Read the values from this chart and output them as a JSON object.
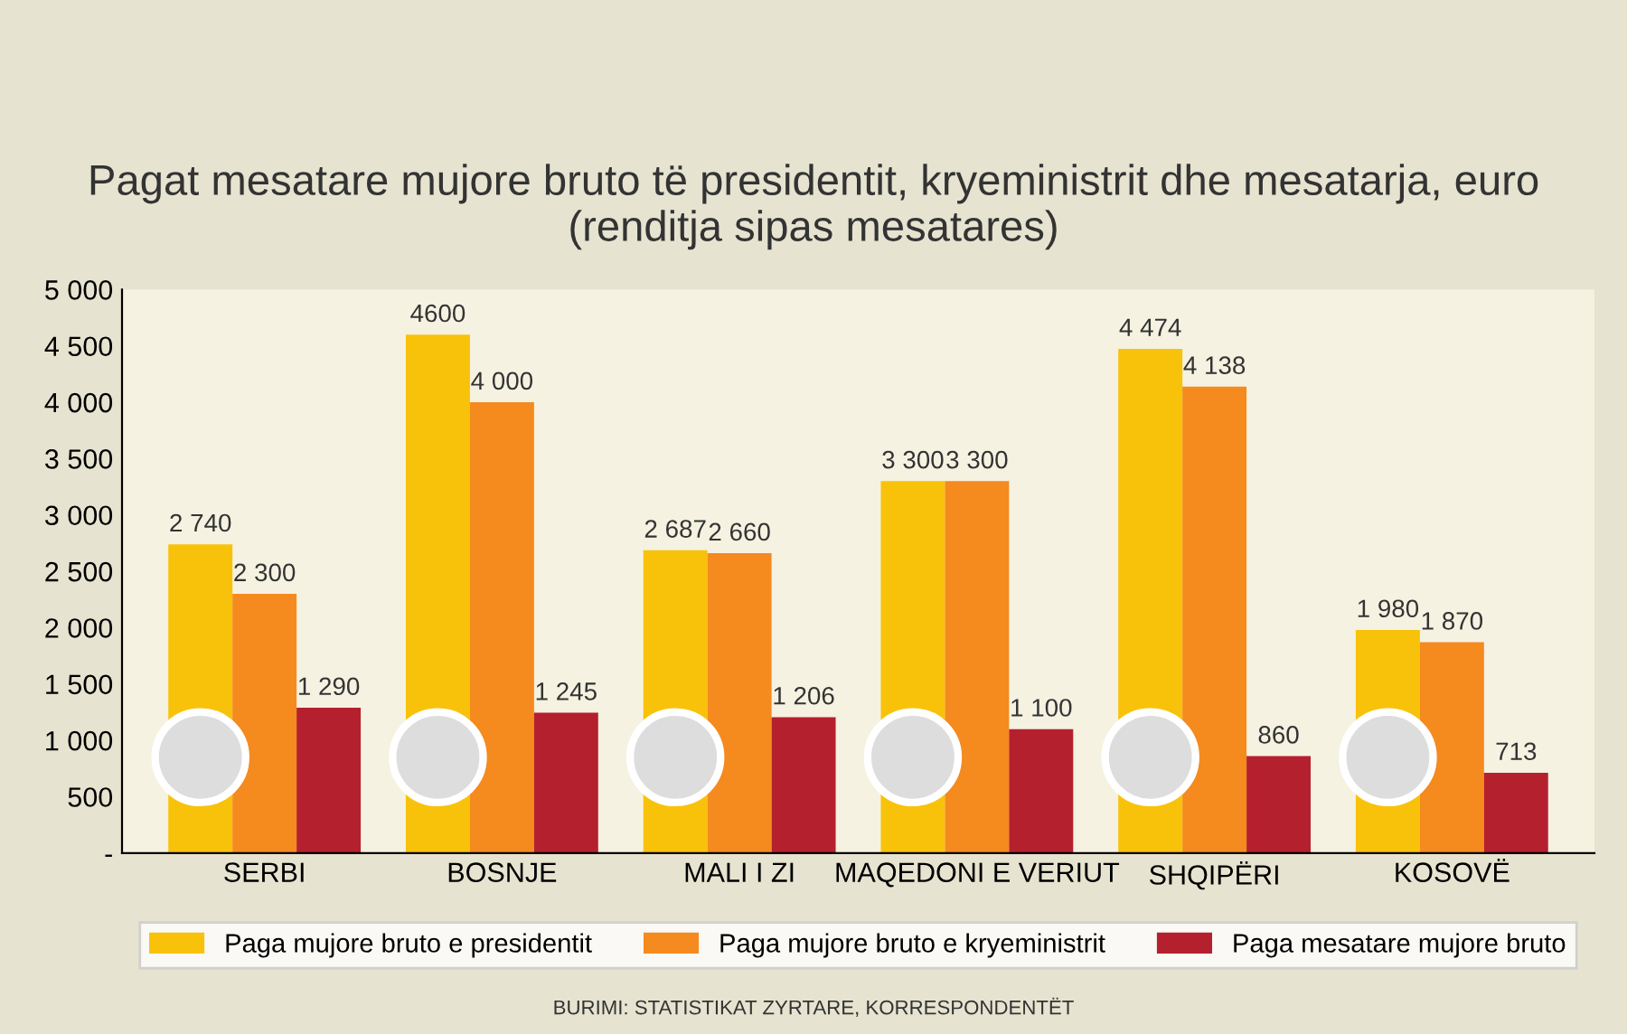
{
  "chart_data": {
    "type": "bar",
    "title": "Pagat mesatare mujore bruto të presidentit, kryeministrit dhe mesatarja, euro\n(renditja sipas mesatares)",
    "categories": [
      "SERBI",
      "BOSNJE",
      "MALI I ZI",
      "MAQEDONI E VERIUT",
      "SHQIPËRI",
      "KOSOVË"
    ],
    "series": [
      {
        "name": "Paga mujore bruto e presidentit",
        "color": "#f9c20a",
        "values": [
          2740,
          4600,
          2687,
          3300,
          4474,
          1980
        ],
        "value_labels": [
          "2 740",
          "4600",
          "2 687",
          "3 300",
          "4 474",
          "1 980"
        ]
      },
      {
        "name": "Paga mujore bruto e kryeministrit",
        "color": "#f58a1f",
        "values": [
          2300,
          4000,
          2660,
          3300,
          4138,
          1870
        ],
        "value_labels": [
          "2 300",
          "4 000",
          "2 660",
          "3 300",
          "4 138",
          "1 870"
        ]
      },
      {
        "name": "Paga mesatare mujore bruto",
        "color": "#b5202e",
        "values": [
          1290,
          1245,
          1206,
          1100,
          860,
          713
        ],
        "value_labels": [
          "1 290",
          "1 245",
          "1 206",
          "1 100",
          "860",
          "713"
        ]
      }
    ],
    "ylim": [
      0,
      5000
    ],
    "yticks": [
      {
        "value": 0,
        "label": "-"
      },
      {
        "value": 500,
        "label": "500"
      },
      {
        "value": 1000,
        "label": "1 000"
      },
      {
        "value": 1500,
        "label": "1 500"
      },
      {
        "value": 2000,
        "label": "2 000"
      },
      {
        "value": 2500,
        "label": "2 500"
      },
      {
        "value": 3000,
        "label": "3 000"
      },
      {
        "value": 3500,
        "label": "3 500"
      },
      {
        "value": 4000,
        "label": "4 000"
      },
      {
        "value": 4500,
        "label": "4 500"
      },
      {
        "value": 5000,
        "label": "5 000"
      }
    ],
    "grid": false,
    "legend": "bottom",
    "annotations": [
      "BURIMI: STATISTIKAT ZYRTARE, KORRESPONDENTËT"
    ]
  }
}
